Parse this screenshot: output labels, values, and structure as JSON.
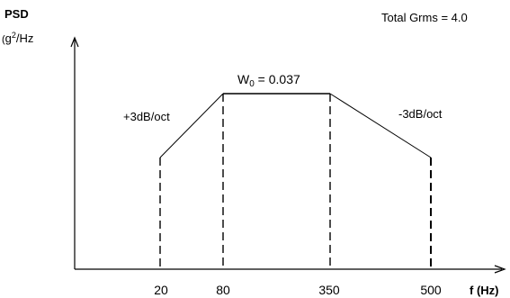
{
  "chart_data": {
    "type": "line",
    "title": "",
    "ylabel": "PSD",
    "yunit_base": "g",
    "yunit_exp": "2",
    "yunit_rest": "/Hz",
    "xlabel": "f (Hz)",
    "x_ticks": [
      "20",
      "80",
      "350",
      "500"
    ],
    "x": [
      20,
      80,
      350,
      500
    ],
    "series": [
      {
        "values": [
          null,
          0.037,
          0.037,
          null
        ]
      }
    ],
    "plateau_label_base": "W",
    "plateau_label_sub": "0",
    "plateau_label_value": " = 0.037",
    "rise_label": "+3dB/oct",
    "fall_label": "-3dB/oct",
    "total_label": "Total Grms = 4.0",
    "grid": false,
    "legend": "none"
  }
}
